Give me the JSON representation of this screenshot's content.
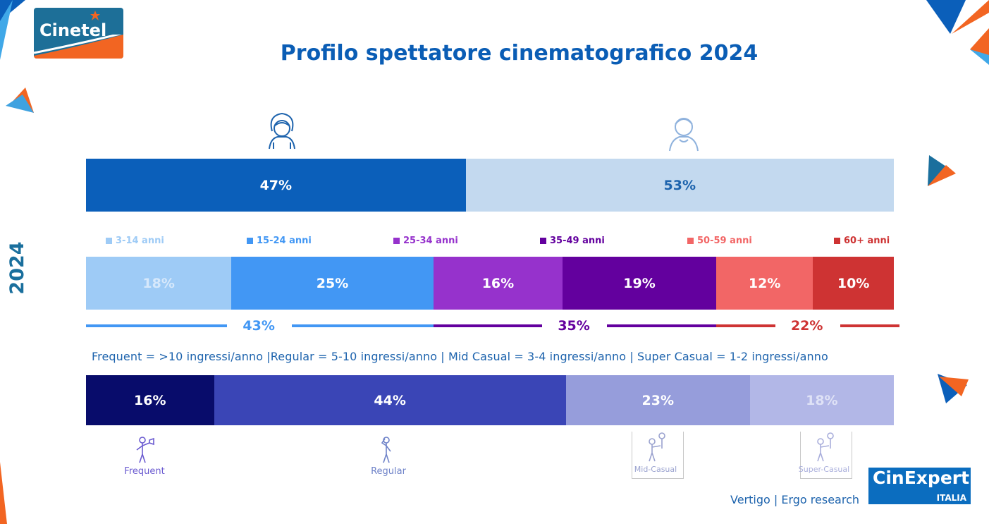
{
  "header": {
    "title": "Profilo spettatore cinematografico 2024",
    "logo_text": "Cinetel"
  },
  "side_label": "2024",
  "note": "Frequent = >10 ingressi/anno |Regular = 5-10 ingressi/anno | Mid Casual = 3-4 ingressi/anno | Super Casual = 1-2 ingressi/anno",
  "footer": {
    "source": "Vertigo | Ergo research",
    "logo_main": "CinExpert",
    "logo_sub": "ITALIA"
  },
  "colors": {
    "title": "#0a5db5",
    "female": "#0b5fba",
    "male": "#c3d9ef",
    "age_3_14": "#9ecbf6",
    "age_15_24": "#4297f4",
    "age_25_34": "#9632cc",
    "age_35_49": "#63009e",
    "age_50_59": "#f26666",
    "age_60_plus": "#ce3333",
    "frequent": "#080c6b",
    "regular": "#3a45b6",
    "mid_casual": "#969ddb",
    "super_casual": "#b2b7e7"
  },
  "chart_data": [
    {
      "type": "bar",
      "orientation": "horizontal-stacked-100",
      "categories": [
        "female",
        "male"
      ],
      "values": [
        47,
        53
      ],
      "labels": [
        "47%",
        "53%"
      ],
      "icons": [
        "woman-icon",
        "man-icon"
      ]
    },
    {
      "type": "bar",
      "orientation": "horizontal-stacked-100",
      "categories": [
        "3-14 anni",
        "15-24 anni",
        "25-34 anni",
        "35-49 anni",
        "50-59 anni",
        "60+ anni"
      ],
      "values": [
        18,
        25,
        16,
        19,
        12,
        10
      ],
      "labels": [
        "18%",
        "25%",
        "16%",
        "19%",
        "12%",
        "10%"
      ],
      "groups": [
        {
          "label": "43%",
          "value": 43,
          "span": [
            0,
            1
          ]
        },
        {
          "label": "35%",
          "value": 35,
          "span": [
            2,
            3
          ]
        },
        {
          "label": "22%",
          "value": 22,
          "span": [
            4,
            5
          ]
        }
      ],
      "legend": "top"
    },
    {
      "type": "bar",
      "orientation": "horizontal-stacked-100",
      "categories": [
        "Frequent",
        "Regular",
        "Mid-Casual",
        "Super-Casual"
      ],
      "values": [
        16,
        44,
        23,
        18
      ],
      "labels": [
        "16%",
        "44%",
        "23%",
        "18%"
      ]
    }
  ]
}
